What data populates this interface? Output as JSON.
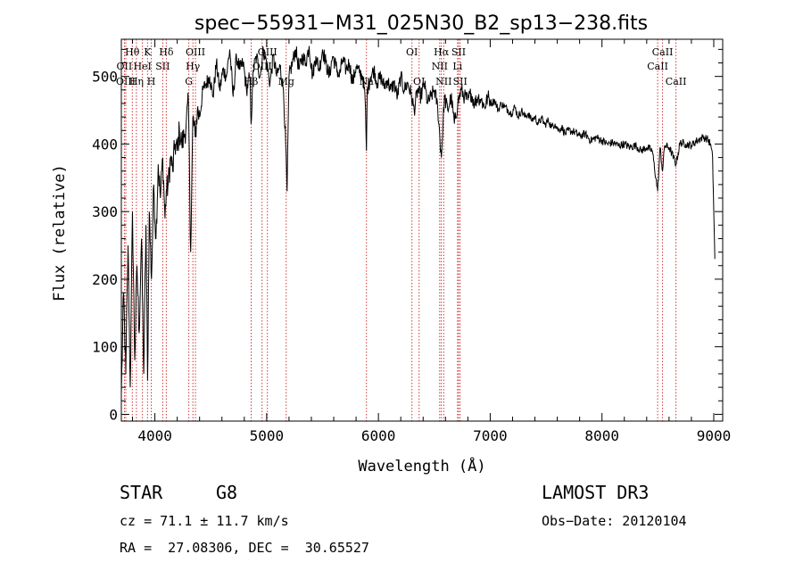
{
  "chart_data": {
    "type": "line",
    "title": "spec−55931−M31_025N30_B2_sp13−238.fits",
    "xlabel": "Wavelength (Å)",
    "ylabel": "Flux (relative)",
    "xlim": [
      3700,
      9080
    ],
    "ylim": [
      -10,
      555
    ],
    "x_ticks": [
      4000,
      5000,
      6000,
      7000,
      8000,
      9000
    ],
    "y_ticks": [
      0,
      100,
      200,
      300,
      400,
      500
    ],
    "x_minor_step": 200,
    "y_minor_step": 20,
    "series": [
      {
        "name": "flux",
        "color": "#000000",
        "x": [
          3700,
          3720,
          3740,
          3760,
          3780,
          3800,
          3820,
          3840,
          3860,
          3880,
          3900,
          3920,
          3935,
          3950,
          3970,
          3990,
          4010,
          4030,
          4050,
          4070,
          4090,
          4102,
          4120,
          4140,
          4160,
          4180,
          4200,
          4220,
          4240,
          4260,
          4280,
          4300,
          4320,
          4340,
          4360,
          4380,
          4400,
          4430,
          4460,
          4490,
          4520,
          4550,
          4580,
          4610,
          4640,
          4670,
          4700,
          4730,
          4760,
          4790,
          4820,
          4850,
          4861,
          4880,
          4910,
          4940,
          4970,
          5000,
          5030,
          5060,
          5090,
          5120,
          5150,
          5170,
          5183,
          5200,
          5230,
          5260,
          5290,
          5320,
          5350,
          5380,
          5410,
          5440,
          5470,
          5500,
          5530,
          5560,
          5590,
          5620,
          5650,
          5680,
          5710,
          5740,
          5770,
          5800,
          5830,
          5860,
          5880,
          5893,
          5900,
          5930,
          5960,
          5990,
          6020,
          6050,
          6080,
          6110,
          6140,
          6170,
          6200,
          6230,
          6260,
          6290,
          6320,
          6350,
          6380,
          6410,
          6440,
          6470,
          6500,
          6530,
          6563,
          6590,
          6620,
          6650,
          6680,
          6710,
          6740,
          6770,
          6800,
          6830,
          6860,
          6890,
          6920,
          6950,
          6980,
          7010,
          7040,
          7070,
          7100,
          7130,
          7160,
          7190,
          7220,
          7250,
          7280,
          7310,
          7340,
          7370,
          7400,
          7430,
          7460,
          7490,
          7520,
          7550,
          7580,
          7610,
          7640,
          7670,
          7700,
          7750,
          7800,
          7850,
          7900,
          7950,
          8000,
          8050,
          8100,
          8150,
          8200,
          8250,
          8300,
          8350,
          8400,
          8450,
          8498,
          8520,
          8542,
          8560,
          8600,
          8640,
          8662,
          8700,
          8750,
          8800,
          8850,
          8900,
          8940,
          8970,
          8990,
          9000,
          9010
        ],
        "y": [
          30,
          180,
          60,
          250,
          40,
          300,
          80,
          220,
          120,
          260,
          60,
          280,
          50,
          300,
          200,
          340,
          260,
          370,
          320,
          380,
          290,
          330,
          340,
          380,
          360,
          400,
          390,
          420,
          400,
          410,
          430,
          460,
          240,
          440,
          410,
          450,
          440,
          480,
          490,
          500,
          470,
          520,
          480,
          510,
          500,
          540,
          470,
          530,
          510,
          520,
          480,
          500,
          430,
          510,
          530,
          500,
          540,
          520,
          490,
          530,
          500,
          515,
          480,
          400,
          330,
          500,
          520,
          540,
          510,
          530,
          520,
          545,
          500,
          530,
          510,
          540,
          520,
          500,
          530,
          515,
          500,
          525,
          510,
          520,
          490,
          515,
          505,
          500,
          470,
          390,
          480,
          500,
          510,
          490,
          500,
          485,
          495,
          480,
          490,
          470,
          500,
          480,
          490,
          475,
          450,
          480,
          470,
          490,
          460,
          470,
          480,
          455,
          380,
          470,
          450,
          470,
          430,
          460,
          480,
          470,
          465,
          475,
          460,
          470,
          465,
          455,
          470,
          460,
          465,
          450,
          460,
          455,
          450,
          445,
          455,
          440,
          450,
          440,
          445,
          435,
          440,
          430,
          438,
          428,
          435,
          425,
          430,
          420,
          425,
          415,
          420,
          418,
          412,
          415,
          405,
          410,
          405,
          400,
          402,
          398,
          400,
          395,
          398,
          390,
          395,
          390,
          330,
          395,
          360,
          398,
          395,
          380,
          370,
          402,
          400,
          398,
          405,
          410,
          408,
          400,
          380,
          300,
          230
        ]
      }
    ],
    "spectral_lines": [
      {
        "name": "Hθ",
        "wavelength": 3798,
        "row": 1
      },
      {
        "name": "OII",
        "wavelength": 3727,
        "row": 2
      },
      {
        "name": "OIII",
        "wavelength": 3740,
        "row": 3
      },
      {
        "name": "HeI",
        "wavelength": 3889,
        "row": 2
      },
      {
        "name": "Hη",
        "wavelength": 3835,
        "row": 3
      },
      {
        "name": "K",
        "wavelength": 3934,
        "row": 1
      },
      {
        "name": "H",
        "wavelength": 3968,
        "row": 3
      },
      {
        "name": "SII",
        "wavelength": 4070,
        "row": 2
      },
      {
        "name": "Hδ",
        "wavelength": 4102,
        "row": 1
      },
      {
        "name": "OIII",
        "wavelength": 4363,
        "row": 1
      },
      {
        "name": "Hγ",
        "wavelength": 4340,
        "row": 2
      },
      {
        "name": "G",
        "wavelength": 4304,
        "row": 3
      },
      {
        "name": "Hβ",
        "wavelength": 4861,
        "row": 3
      },
      {
        "name": "OIII",
        "wavelength": 5007,
        "row": 1
      },
      {
        "name": "OIII",
        "wavelength": 4959,
        "row": 2
      },
      {
        "name": "Mg",
        "wavelength": 5175,
        "row": 3
      },
      {
        "name": "Na",
        "wavelength": 5893,
        "row": 3
      },
      {
        "name": "OI",
        "wavelength": 6300,
        "row": 1
      },
      {
        "name": "OI",
        "wavelength": 6364,
        "row": 3
      },
      {
        "name": "Hα",
        "wavelength": 6563,
        "row": 1
      },
      {
        "name": "NII",
        "wavelength": 6548,
        "row": 2
      },
      {
        "name": "NII",
        "wavelength": 6584,
        "row": 3
      },
      {
        "name": "SII",
        "wavelength": 6717,
        "row": 1
      },
      {
        "name": "Li",
        "wavelength": 6708,
        "row": 2
      },
      {
        "name": "SII",
        "wavelength": 6731,
        "row": 3
      },
      {
        "name": "CaII",
        "wavelength": 8542,
        "row": 1
      },
      {
        "name": "CaII",
        "wavelength": 8498,
        "row": 2
      },
      {
        "name": "CaII",
        "wavelength": 8662,
        "row": 3
      }
    ]
  },
  "info": {
    "class": "STAR",
    "subclass": "G8",
    "survey": "LAMOST DR3",
    "cz": "cz = 71.1 ± 11.7 km/s",
    "obs_date": "Obs−Date: 20120104",
    "coords": "RA =  27.08306, DEC =  30.65527"
  },
  "colors": {
    "line_marker": "#cc2222",
    "spectrum": "#000000"
  }
}
